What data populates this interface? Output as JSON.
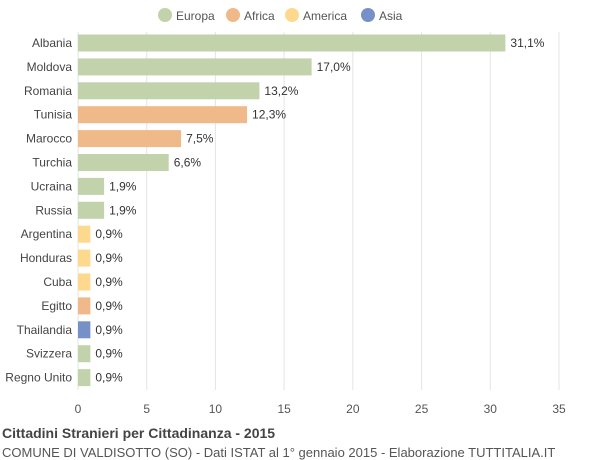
{
  "chart_data": {
    "type": "bar",
    "orientation": "horizontal",
    "title": "Cittadini Stranieri per Cittadinanza - 2015",
    "subtitle": "COMUNE DI VALDISOTTO (SO) - Dati ISTAT al 1° gennaio 2015 - Elaborazione TUTTITALIA.IT",
    "legend": {
      "placement": "top-center",
      "entries": [
        {
          "name": "Europa",
          "color": "#c2d3ac"
        },
        {
          "name": "Africa",
          "color": "#f0b98a"
        },
        {
          "name": "America",
          "color": "#fdd98d"
        },
        {
          "name": "Asia",
          "color": "#7591c8"
        }
      ]
    },
    "categories": [
      "Albania",
      "Moldova",
      "Romania",
      "Tunisia",
      "Marocco",
      "Turchia",
      "Ucraina",
      "Russia",
      "Argentina",
      "Honduras",
      "Cuba",
      "Egitto",
      "Thailandia",
      "Svizzera",
      "Regno Unito"
    ],
    "values": [
      31.1,
      17.0,
      13.2,
      12.3,
      7.5,
      6.6,
      1.9,
      1.9,
      0.9,
      0.9,
      0.9,
      0.9,
      0.9,
      0.9,
      0.9
    ],
    "value_labels": [
      "31,1%",
      "17,0%",
      "13,2%",
      "12,3%",
      "7,5%",
      "6,6%",
      "1,9%",
      "1,9%",
      "0,9%",
      "0,9%",
      "0,9%",
      "0,9%",
      "0,9%",
      "0,9%",
      "0,9%"
    ],
    "groups": [
      "Europa",
      "Europa",
      "Europa",
      "Africa",
      "Africa",
      "Europa",
      "Europa",
      "Europa",
      "America",
      "America",
      "America",
      "Africa",
      "Asia",
      "Europa",
      "Europa"
    ],
    "xlim": [
      0,
      35
    ],
    "xticks": [
      0,
      5,
      10,
      15,
      20,
      25,
      30,
      35
    ],
    "grid": true
  }
}
